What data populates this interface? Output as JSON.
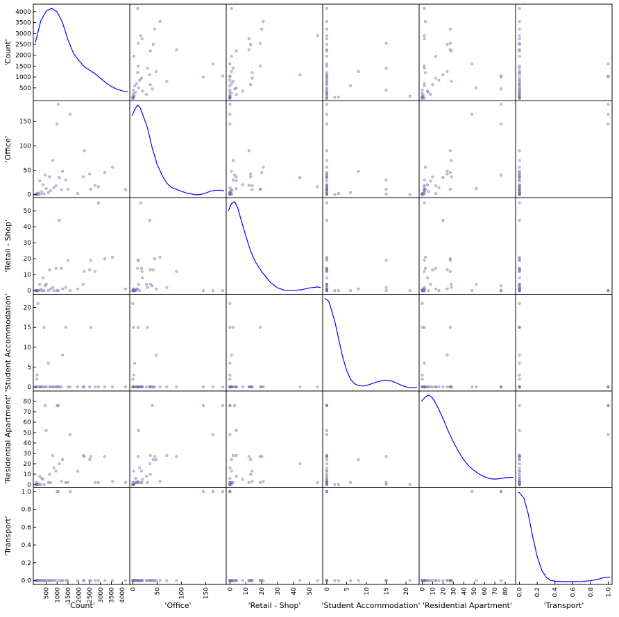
{
  "chart_data": {
    "type": "scatter",
    "kind": "scatter-matrix",
    "diagonal": "kde",
    "point_color": "#7b7bb5",
    "kde_color": "#0000ff",
    "variables": [
      {
        "name": "'Count'",
        "range": [
          0,
          4250
        ],
        "ticks": [
          500,
          1000,
          1500,
          2000,
          2500,
          3000,
          3500,
          4000
        ],
        "tick_labels": [
          "500",
          "1000",
          "1500",
          "2000",
          "2500",
          "3000",
          "3500",
          "4000"
        ]
      },
      {
        "name": "'Office'",
        "range": [
          -2,
          188
        ],
        "ticks": [
          0,
          50,
          100,
          150
        ],
        "tick_labels": [
          "0",
          "50",
          "100",
          "150"
        ]
      },
      {
        "name": "'Retail - Shop'",
        "range": [
          -1,
          57
        ],
        "ticks": [
          0,
          10,
          20,
          30,
          40,
          50
        ],
        "tick_labels": [
          "0",
          "10",
          "20",
          "30",
          "40",
          "50"
        ]
      },
      {
        "name": "'Student Accommodation'",
        "range": [
          -0.5,
          22.8
        ],
        "ticks": [
          0,
          5,
          10,
          15,
          20
        ],
        "tick_labels": [
          "0",
          "5",
          "10",
          "15",
          "20"
        ]
      },
      {
        "name": "'Residential Apartment'",
        "range": [
          -1,
          88
        ],
        "ticks": [
          0,
          10,
          20,
          30,
          40,
          50,
          60,
          70,
          80
        ],
        "tick_labels": [
          "0",
          "10",
          "20",
          "30",
          "40",
          "50",
          "60",
          "70",
          "80"
        ]
      },
      {
        "name": "'Transport'",
        "range": [
          -0.02,
          1.02
        ],
        "ticks": [
          0,
          0.2,
          0.4,
          0.6,
          0.8,
          1.0
        ],
        "tick_labels": [
          "0.0",
          "0.2",
          "0.4",
          "0.6",
          "0.8",
          "1.0"
        ]
      }
    ],
    "records": [
      [
        4150,
        10,
        1,
        0,
        2,
        0
      ],
      [
        3550,
        56,
        21,
        0,
        3,
        0
      ],
      [
        3200,
        45,
        20,
        0,
        27,
        0
      ],
      [
        2900,
        16,
        55,
        0,
        2,
        0
      ],
      [
        2750,
        19,
        12,
        0,
        2,
        0
      ],
      [
        2550,
        11,
        19,
        15,
        27,
        0
      ],
      [
        2500,
        42,
        13,
        0,
        24,
        0
      ],
      [
        2250,
        90,
        12,
        0,
        27,
        0
      ],
      [
        2200,
        36,
        4,
        0,
        28,
        0
      ],
      [
        1950,
        2,
        1,
        0,
        13,
        0
      ],
      [
        1600,
        165,
        0,
        0,
        48,
        1
      ],
      [
        1500,
        11,
        19,
        0,
        2,
        0
      ],
      [
        1400,
        30,
        2,
        15,
        2,
        0
      ],
      [
        1250,
        48,
        1,
        8,
        24,
        0
      ],
      [
        1200,
        10,
        14,
        0,
        3,
        0
      ],
      [
        1100,
        35,
        44,
        0,
        20,
        0
      ],
      [
        1050,
        185,
        0,
        0,
        76,
        1
      ],
      [
        1000,
        145,
        0,
        0,
        76,
        1
      ],
      [
        950,
        18,
        14,
        0,
        13,
        0
      ],
      [
        850,
        14,
        0,
        0,
        16,
        0
      ],
      [
        800,
        70,
        2,
        0,
        28,
        0
      ],
      [
        700,
        8,
        1,
        0,
        2,
        0
      ],
      [
        650,
        36,
        13,
        0,
        10,
        0
      ],
      [
        600,
        4,
        0,
        6,
        2,
        0
      ],
      [
        500,
        12,
        4,
        0,
        52,
        0
      ],
      [
        450,
        40,
        3,
        0,
        76,
        0
      ],
      [
        400,
        1,
        0,
        15,
        0,
        0
      ],
      [
        350,
        20,
        8,
        0,
        5,
        0
      ],
      [
        300,
        6,
        0,
        0,
        6,
        0
      ],
      [
        250,
        1,
        1,
        0,
        0,
        0
      ],
      [
        200,
        28,
        4,
        0,
        8,
        0
      ],
      [
        150,
        3,
        0,
        0,
        1,
        0
      ],
      [
        120,
        0,
        0,
        21,
        0,
        0
      ],
      [
        80,
        2,
        0,
        3,
        0,
        0
      ],
      [
        60,
        0,
        0,
        2,
        0,
        0
      ],
      [
        40,
        1,
        0,
        0,
        0,
        0
      ],
      [
        30,
        0,
        0,
        0,
        2,
        0
      ],
      [
        20,
        0,
        0,
        0,
        0,
        0
      ]
    ],
    "kde": [
      {
        "var": "'Count'",
        "x": [
          0,
          250,
          500,
          750,
          1000,
          1250,
          1500,
          1750,
          2000,
          2250,
          2500,
          2750,
          3000,
          3250,
          3500,
          3750,
          4000,
          4250
        ],
        "y": [
          0.62,
          0.86,
          0.97,
          1.0,
          0.96,
          0.84,
          0.65,
          0.5,
          0.42,
          0.35,
          0.31,
          0.27,
          0.22,
          0.17,
          0.13,
          0.1,
          0.08,
          0.07
        ]
      },
      {
        "var": "'Office'",
        "x": [
          -2,
          5,
          10,
          15,
          20,
          30,
          40,
          50,
          60,
          70,
          80,
          90,
          100,
          110,
          120,
          130,
          140,
          150,
          160,
          170,
          180,
          188
        ],
        "y": [
          0.88,
          0.96,
          1.0,
          0.97,
          0.9,
          0.75,
          0.52,
          0.34,
          0.22,
          0.13,
          0.08,
          0.06,
          0.04,
          0.02,
          0.01,
          0.0,
          0.005,
          0.02,
          0.04,
          0.05,
          0.05,
          0.045
        ]
      },
      {
        "var": "'Retail - Shop'",
        "x": [
          -1,
          1,
          3,
          5,
          7,
          10,
          13,
          16,
          20,
          25,
          30,
          35,
          40,
          45,
          50,
          55,
          57
        ],
        "y": [
          0.9,
          0.98,
          1.0,
          0.93,
          0.8,
          0.62,
          0.45,
          0.33,
          0.22,
          0.11,
          0.04,
          0.01,
          0.01,
          0.02,
          0.04,
          0.05,
          0.045
        ]
      },
      {
        "var": "'Student Accommodation'",
        "x": [
          -0.5,
          0.5,
          1,
          2,
          3,
          4,
          5,
          6,
          7,
          8,
          9,
          10,
          11,
          12,
          13,
          14,
          15,
          16,
          17,
          18,
          19,
          20,
          21,
          22.8
        ],
        "y": [
          1.0,
          0.97,
          0.9,
          0.75,
          0.55,
          0.35,
          0.2,
          0.1,
          0.05,
          0.03,
          0.025,
          0.03,
          0.045,
          0.06,
          0.075,
          0.085,
          0.09,
          0.085,
          0.07,
          0.05,
          0.03,
          0.015,
          0.008,
          0.005
        ]
      },
      {
        "var": "'Residential Apartment'",
        "x": [
          -1,
          3,
          6,
          9,
          12,
          16,
          20,
          25,
          30,
          35,
          40,
          45,
          50,
          55,
          60,
          65,
          70,
          75,
          80,
          85,
          88
        ],
        "y": [
          0.93,
          0.98,
          1.0,
          0.98,
          0.93,
          0.84,
          0.74,
          0.6,
          0.48,
          0.37,
          0.28,
          0.21,
          0.16,
          0.12,
          0.09,
          0.07,
          0.065,
          0.07,
          0.08,
          0.085,
          0.08
        ]
      },
      {
        "var": "'Transport'",
        "x": [
          -0.02,
          0.0,
          0.05,
          0.1,
          0.15,
          0.2,
          0.25,
          0.3,
          0.35,
          0.4,
          0.5,
          0.6,
          0.7,
          0.8,
          0.9,
          0.95,
          1.0,
          1.02
        ],
        "y": [
          1.0,
          0.99,
          0.93,
          0.75,
          0.5,
          0.28,
          0.13,
          0.05,
          0.015,
          0.005,
          0.0,
          0.0,
          0.002,
          0.01,
          0.03,
          0.045,
          0.05,
          0.05
        ]
      }
    ]
  }
}
